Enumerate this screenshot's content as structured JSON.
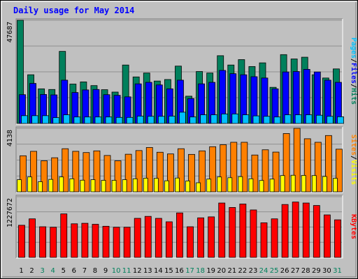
{
  "title": "Daily usage for May 2014",
  "colors": {
    "background": "#c0c0c0",
    "frame_dark": "#000000",
    "frame_light": "#ffffff",
    "title": "#0000ff",
    "hits": "#00805c",
    "files": "#0000ff",
    "pages": "#00c0ff",
    "visits": "#ffff00",
    "sites": "#ff8000",
    "kbytes": "#ff0000",
    "weekend_label": "#00805c",
    "weekday_label": "#000000"
  },
  "legend": {
    "top": [
      {
        "text": "Pages",
        "color": "#00c0ff"
      },
      {
        "text": "/",
        "color": "#000000"
      },
      {
        "text": "Files",
        "color": "#0000ff"
      },
      {
        "text": "/",
        "color": "#000000"
      },
      {
        "text": "Hits",
        "color": "#00805c"
      }
    ],
    "middle": [
      {
        "text": "Sites",
        "color": "#ff8000"
      },
      {
        "text": "/",
        "color": "#000000"
      },
      {
        "text": "Visits",
        "color": "#ffff00"
      }
    ],
    "bottom": [
      {
        "text": "KBytes",
        "color": "#ff0000"
      }
    ]
  },
  "chart_data": [
    {
      "type": "bar",
      "panel": "top",
      "y_max_label": "47687",
      "ylim": [
        0,
        47687
      ],
      "grid": true,
      "categories": [
        "1",
        "2",
        "3",
        "4",
        "5",
        "6",
        "7",
        "8",
        "9",
        "10",
        "11",
        "12",
        "13",
        "14",
        "15",
        "16",
        "17",
        "18",
        "19",
        "20",
        "21",
        "22",
        "23",
        "24",
        "25",
        "26",
        "27",
        "28",
        "29",
        "30",
        "31"
      ],
      "weekend_days": [
        "3",
        "4",
        "10",
        "11",
        "17",
        "18",
        "24",
        "25",
        "31"
      ],
      "series": [
        {
          "name": "Hits",
          "color": "#00805c",
          "values": [
            47687,
            22500,
            16000,
            15700,
            33300,
            18200,
            19200,
            17500,
            15600,
            14500,
            27000,
            21500,
            23300,
            19600,
            20300,
            26500,
            12600,
            24000,
            23300,
            31300,
            27000,
            29500,
            26300,
            28000,
            16700,
            31800,
            29800,
            30600,
            22500,
            21000,
            25200
          ]
        },
        {
          "name": "Files",
          "color": "#0000ff",
          "values": [
            13300,
            18500,
            13400,
            13200,
            20000,
            14300,
            15500,
            15700,
            13300,
            13000,
            12300,
            18300,
            19000,
            17800,
            16000,
            20000,
            11500,
            18300,
            19000,
            24500,
            23000,
            22500,
            21600,
            21000,
            16000,
            23800,
            24000,
            25000,
            23800,
            20000,
            19000
          ]
        },
        {
          "name": "Pages",
          "color": "#00c0ff",
          "values": [
            3600,
            3600,
            3600,
            2700,
            4000,
            3000,
            3000,
            3000,
            3000,
            2800,
            2800,
            3400,
            3300,
            3300,
            3400,
            5200,
            3000,
            4000,
            4000,
            4400,
            4400,
            4000,
            3500,
            3300,
            3000,
            4000,
            4000,
            4000,
            3800,
            3300,
            3100
          ]
        }
      ]
    },
    {
      "type": "bar",
      "panel": "middle",
      "y_max_label": "4138",
      "ylim": [
        0,
        4138
      ],
      "grid": true,
      "categories": [
        "1",
        "2",
        "3",
        "4",
        "5",
        "6",
        "7",
        "8",
        "9",
        "10",
        "11",
        "12",
        "13",
        "14",
        "15",
        "16",
        "17",
        "18",
        "19",
        "20",
        "21",
        "22",
        "23",
        "24",
        "25",
        "26",
        "27",
        "28",
        "29",
        "30",
        "31"
      ],
      "series": [
        {
          "name": "Sites",
          "color": "#ff8000",
          "values": [
            2350,
            2640,
            2020,
            2220,
            2810,
            2640,
            2560,
            2670,
            2370,
            2020,
            2450,
            2690,
            2890,
            2580,
            2470,
            2810,
            2440,
            2670,
            2940,
            3070,
            3230,
            3230,
            2400,
            2740,
            2590,
            3800,
            4138,
            3460,
            3230,
            3670,
            2780
          ]
        },
        {
          "name": "Visits",
          "color": "#ffff00",
          "values": [
            790,
            970,
            660,
            810,
            970,
            850,
            760,
            790,
            750,
            750,
            790,
            850,
            890,
            880,
            720,
            900,
            710,
            590,
            830,
            970,
            920,
            990,
            850,
            740,
            830,
            1060,
            1080,
            1070,
            1060,
            1000,
            880
          ]
        }
      ]
    },
    {
      "type": "bar",
      "panel": "bottom",
      "y_max_label": "1227672",
      "ylim": [
        0,
        1227672
      ],
      "grid": true,
      "categories": [
        "1",
        "2",
        "3",
        "4",
        "5",
        "6",
        "7",
        "8",
        "9",
        "10",
        "11",
        "12",
        "13",
        "14",
        "15",
        "16",
        "17",
        "18",
        "19",
        "20",
        "21",
        "22",
        "23",
        "24",
        "25",
        "26",
        "27",
        "28",
        "29",
        "30",
        "31"
      ],
      "series": [
        {
          "name": "KBytes",
          "color": "#ff0000",
          "values": [
            650000,
            780000,
            620000,
            610000,
            880000,
            680000,
            690000,
            670000,
            630000,
            610000,
            610000,
            790000,
            830000,
            790000,
            720000,
            900000,
            620000,
            800000,
            820000,
            1100000,
            1010000,
            1080000,
            960000,
            700000,
            780000,
            1070000,
            1120000,
            1100000,
            1050000,
            860000,
            760000
          ]
        }
      ]
    }
  ]
}
